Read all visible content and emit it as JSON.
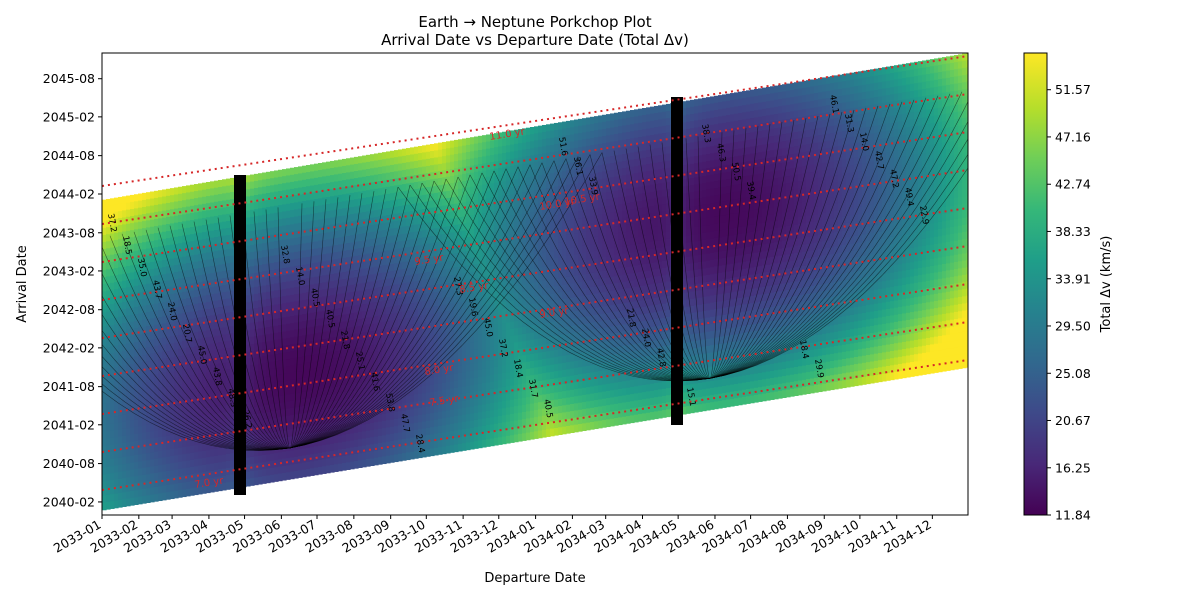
{
  "chart_data": {
    "type": "heatmap",
    "title": "Earth → Neptune Porkchop Plot",
    "subtitle": "Arrival Date vs Departure Date (Total Δv)",
    "xlabel": "Departure Date",
    "ylabel": "Arrival Date",
    "colorbar_label": "Total Δv (km/s)",
    "colormap": "viridis",
    "x_range": [
      "2033-01-01",
      "2034-12-31"
    ],
    "y_range": [
      "2039-12-01",
      "2045-12-01"
    ],
    "x_ticks": [
      "2033-01",
      "2033-02",
      "2033-03",
      "2033-04",
      "2033-05",
      "2033-06",
      "2033-07",
      "2033-08",
      "2033-09",
      "2033-10",
      "2033-11",
      "2033-12",
      "2034-01",
      "2034-02",
      "2034-03",
      "2034-04",
      "2034-05",
      "2034-06",
      "2034-07",
      "2034-08",
      "2034-09",
      "2034-10",
      "2034-11",
      "2034-12"
    ],
    "y_ticks": [
      "2040-02",
      "2040-08",
      "2041-02",
      "2041-08",
      "2042-02",
      "2042-08",
      "2043-02",
      "2043-08",
      "2044-02",
      "2044-08",
      "2045-02",
      "2045-08"
    ],
    "colorbar_ticks": [
      11.84,
      16.25,
      20.67,
      25.08,
      29.5,
      33.91,
      38.33,
      42.74,
      47.16,
      51.57
    ],
    "colorbar_range": [
      11.84,
      55.0
    ],
    "tof_labels": [
      "7.0 yr",
      "7.5 yr",
      "8.0 yr",
      "8.5 yr",
      "9.0 yr",
      "9.5 yr",
      "10.0 yr",
      "10.5 yr",
      "11.0 yr"
    ],
    "contour_labels": [
      "37.2",
      "32.8",
      "27.3",
      "21.8",
      "18.4",
      "18.5",
      "14.0",
      "19.6",
      "24.0",
      "29.9",
      "35.0",
      "40.5",
      "45.0",
      "42.8",
      "46.1",
      "43.7",
      "40.5",
      "37.2",
      "33.8",
      "31.3",
      "24.0",
      "21.8",
      "18.4",
      "15.1",
      "14.0",
      "20.7",
      "25.1",
      "31.7",
      "38.3",
      "42.7",
      "45.0",
      "41.6",
      "40.5",
      "46.3",
      "47.2",
      "43.8",
      "53.8",
      "51.6",
      "50.5",
      "49.4",
      "48.3",
      "47.7",
      "36.1",
      "39.4",
      "22.9",
      "26.2",
      "28.4",
      "33.9"
    ]
  }
}
